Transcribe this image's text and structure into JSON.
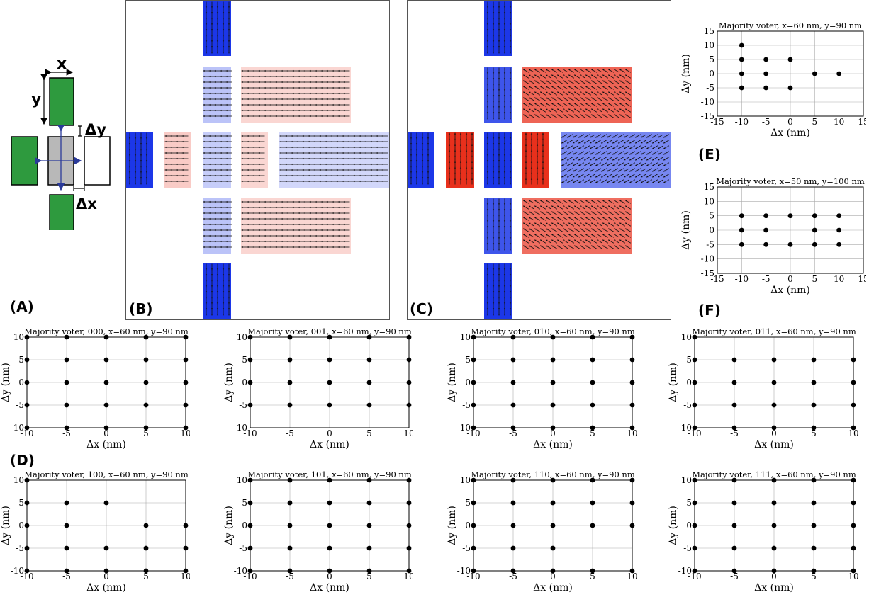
{
  "panel_letters": {
    "a": "(A)",
    "b": "(B)",
    "c": "(C)",
    "d": "(D)",
    "e": "(E)",
    "f": "(F)"
  },
  "schematic": {
    "x_label": "x",
    "y_label": "y",
    "dx_label": "Δx",
    "dy_label": "Δy",
    "colors": {
      "fixed": "#2e9a3e",
      "center": "#b8b8b8",
      "output": "#ffffff"
    }
  },
  "sims": {
    "colors": {
      "red": "#e8301c",
      "blue": "#1c37e8"
    },
    "b": {
      "magnets": [
        {
          "x": 108,
          "y": 0,
          "w": 40,
          "h": 78,
          "dir": "down",
          "c": "b",
          "s": 1.0
        },
        {
          "x": 108,
          "y": 93,
          "w": 40,
          "h": 80,
          "dir": "left",
          "c": "b",
          "s": 0.3
        },
        {
          "x": 162,
          "y": 93,
          "w": 155,
          "h": 80,
          "dir": "left",
          "c": "r",
          "s": 0.2
        },
        {
          "x": 0,
          "y": 185,
          "w": 38,
          "h": 79,
          "dir": "down",
          "c": "b",
          "s": 1.0
        },
        {
          "x": 54,
          "y": 185,
          "w": 38,
          "h": 79,
          "dir": "left",
          "c": "r",
          "s": 0.25
        },
        {
          "x": 108,
          "y": 185,
          "w": 40,
          "h": 79,
          "dir": "left",
          "c": "b",
          "s": 0.25
        },
        {
          "x": 162,
          "y": 185,
          "w": 38,
          "h": 79,
          "dir": "left",
          "c": "r",
          "s": 0.2
        },
        {
          "x": 216,
          "y": 185,
          "w": 155,
          "h": 79,
          "dir": "left",
          "c": "b",
          "s": 0.2
        },
        {
          "x": 108,
          "y": 278,
          "w": 40,
          "h": 80,
          "dir": "left",
          "c": "b",
          "s": 0.3
        },
        {
          "x": 162,
          "y": 278,
          "w": 155,
          "h": 80,
          "dir": "left",
          "c": "r",
          "s": 0.2
        },
        {
          "x": 108,
          "y": 370,
          "w": 40,
          "h": 80,
          "dir": "down",
          "c": "b",
          "s": 1.0
        }
      ]
    },
    "c": {
      "magnets": [
        {
          "x": 108,
          "y": 0,
          "w": 40,
          "h": 78,
          "dir": "down",
          "c": "b",
          "s": 1.0
        },
        {
          "x": 108,
          "y": 93,
          "w": 40,
          "h": 80,
          "dir": "down",
          "c": "b",
          "s": 0.85
        },
        {
          "x": 162,
          "y": 93,
          "w": 155,
          "h": 80,
          "dir": "upleft",
          "c": "r",
          "s": 0.75
        },
        {
          "x": 0,
          "y": 185,
          "w": 38,
          "h": 79,
          "dir": "down",
          "c": "b",
          "s": 1.0
        },
        {
          "x": 54,
          "y": 185,
          "w": 40,
          "h": 79,
          "dir": "up",
          "c": "r",
          "s": 1.0
        },
        {
          "x": 108,
          "y": 185,
          "w": 40,
          "h": 79,
          "dir": "down",
          "c": "b",
          "s": 1.0
        },
        {
          "x": 162,
          "y": 185,
          "w": 38,
          "h": 79,
          "dir": "up",
          "c": "r",
          "s": 1.0
        },
        {
          "x": 216,
          "y": 185,
          "w": 155,
          "h": 79,
          "dir": "downleft",
          "c": "b",
          "s": 0.6
        },
        {
          "x": 108,
          "y": 278,
          "w": 40,
          "h": 80,
          "dir": "down",
          "c": "b",
          "s": 0.85
        },
        {
          "x": 162,
          "y": 278,
          "w": 155,
          "h": 80,
          "dir": "upleft",
          "c": "r",
          "s": 0.7
        },
        {
          "x": 108,
          "y": 370,
          "w": 40,
          "h": 80,
          "dir": "down",
          "c": "b",
          "s": 1.0
        }
      ]
    }
  },
  "chart_data": [
    {
      "type": "scatter",
      "title": "Majority voter, x=60 nm, y=90 nm",
      "xlabel": "Δx (nm)",
      "ylabel": "Δy (nm)",
      "xlim": [
        -15,
        15
      ],
      "ylim": [
        -15,
        15
      ],
      "xticks": [
        -15,
        -10,
        -5,
        0,
        5,
        10,
        15
      ],
      "yticks": [
        -15,
        -10,
        -5,
        0,
        5,
        10,
        15
      ],
      "grid": true,
      "points": [
        [
          -10,
          10
        ],
        [
          -10,
          5
        ],
        [
          -5,
          5
        ],
        [
          0,
          5
        ],
        [
          -10,
          0
        ],
        [
          -5,
          0
        ],
        [
          5,
          0
        ],
        [
          10,
          0
        ],
        [
          -10,
          -5
        ],
        [
          -5,
          -5
        ],
        [
          0,
          -5
        ]
      ]
    },
    {
      "type": "scatter",
      "title": "Majority voter, x=50 nm, y=100 nm",
      "xlabel": "Δx (nm)",
      "ylabel": "Δy (nm)",
      "xlim": [
        -15,
        15
      ],
      "ylim": [
        -15,
        15
      ],
      "xticks": [
        -15,
        -10,
        -5,
        0,
        5,
        10,
        15
      ],
      "yticks": [
        -15,
        -10,
        -5,
        0,
        5,
        10,
        15
      ],
      "grid": true,
      "points": [
        [
          -10,
          5
        ],
        [
          -5,
          5
        ],
        [
          0,
          5
        ],
        [
          5,
          5
        ],
        [
          10,
          5
        ],
        [
          -10,
          0
        ],
        [
          -5,
          0
        ],
        [
          5,
          0
        ],
        [
          10,
          0
        ],
        [
          -10,
          -5
        ],
        [
          -5,
          -5
        ],
        [
          0,
          -5
        ],
        [
          5,
          -5
        ],
        [
          10,
          -5
        ]
      ]
    },
    {
      "type": "scatter",
      "title": "Majority voter, 000, x=60 nm, y=90 nm",
      "xlabel": "Δx (nm)",
      "ylabel": "Δy (nm)",
      "xlim": [
        -10,
        10
      ],
      "ylim": [
        -10,
        10
      ],
      "xticks": [
        -10,
        -5,
        0,
        5,
        10
      ],
      "yticks": [
        -10,
        -5,
        0,
        5,
        10
      ],
      "grid": true,
      "points": [
        [
          -10,
          10
        ],
        [
          -5,
          10
        ],
        [
          0,
          10
        ],
        [
          5,
          10
        ],
        [
          10,
          10
        ],
        [
          -10,
          5
        ],
        [
          -5,
          5
        ],
        [
          0,
          5
        ],
        [
          5,
          5
        ],
        [
          10,
          5
        ],
        [
          -10,
          0
        ],
        [
          -5,
          0
        ],
        [
          0,
          0
        ],
        [
          5,
          0
        ],
        [
          10,
          0
        ],
        [
          -10,
          -5
        ],
        [
          -5,
          -5
        ],
        [
          0,
          -5
        ],
        [
          5,
          -5
        ],
        [
          10,
          -5
        ],
        [
          -10,
          -10
        ],
        [
          -5,
          -10
        ],
        [
          0,
          -10
        ],
        [
          5,
          -10
        ],
        [
          10,
          -10
        ]
      ]
    },
    {
      "type": "scatter",
      "title": "Majority voter, 001, x=60 nm, y=90 nm",
      "xlabel": "Δx (nm)",
      "ylabel": "Δy (nm)",
      "xlim": [
        -10,
        10
      ],
      "ylim": [
        -10,
        10
      ],
      "xticks": [
        -10,
        -5,
        0,
        5,
        10
      ],
      "yticks": [
        -10,
        -5,
        0,
        5,
        10
      ],
      "grid": true,
      "points": [
        [
          -10,
          10
        ],
        [
          -5,
          10
        ],
        [
          0,
          10
        ],
        [
          5,
          10
        ],
        [
          10,
          10
        ],
        [
          -10,
          5
        ],
        [
          -5,
          5
        ],
        [
          0,
          5
        ],
        [
          5,
          5
        ],
        [
          10,
          5
        ],
        [
          -10,
          0
        ],
        [
          -5,
          0
        ],
        [
          0,
          0
        ],
        [
          5,
          0
        ],
        [
          10,
          0
        ],
        [
          -10,
          -5
        ],
        [
          -5,
          -5
        ],
        [
          0,
          -5
        ],
        [
          5,
          -5
        ],
        [
          10,
          -5
        ]
      ]
    },
    {
      "type": "scatter",
      "title": "Majority voter, 010, x=60 nm, y=90 nm",
      "xlabel": "Δx (nm)",
      "ylabel": "Δy (nm)",
      "xlim": [
        -10,
        10
      ],
      "ylim": [
        -10,
        10
      ],
      "xticks": [
        -10,
        -5,
        0,
        5,
        10
      ],
      "yticks": [
        -10,
        -5,
        0,
        5,
        10
      ],
      "grid": true,
      "points": [
        [
          -10,
          10
        ],
        [
          -5,
          10
        ],
        [
          0,
          10
        ],
        [
          5,
          10
        ],
        [
          10,
          10
        ],
        [
          -10,
          5
        ],
        [
          -5,
          5
        ],
        [
          0,
          5
        ],
        [
          5,
          5
        ],
        [
          10,
          5
        ],
        [
          -10,
          0
        ],
        [
          -5,
          0
        ],
        [
          0,
          0
        ],
        [
          5,
          0
        ],
        [
          10,
          0
        ],
        [
          -10,
          -5
        ],
        [
          -5,
          -5
        ],
        [
          0,
          -5
        ],
        [
          5,
          -5
        ],
        [
          10,
          -5
        ],
        [
          -10,
          -10
        ],
        [
          -5,
          -10
        ],
        [
          0,
          -10
        ],
        [
          5,
          -10
        ],
        [
          10,
          -10
        ]
      ]
    },
    {
      "type": "scatter",
      "title": "Majority voter, 011, x=60 nm, y=90 nm",
      "xlabel": "Δx (nm)",
      "ylabel": "Δy (nm)",
      "xlim": [
        -10,
        10
      ],
      "ylim": [
        -10,
        10
      ],
      "xticks": [
        -10,
        -5,
        0,
        5,
        10
      ],
      "yticks": [
        -10,
        -5,
        0,
        5,
        10
      ],
      "grid": true,
      "points": [
        [
          -10,
          10
        ],
        [
          -10,
          5
        ],
        [
          -5,
          5
        ],
        [
          0,
          5
        ],
        [
          5,
          5
        ],
        [
          10,
          5
        ],
        [
          -10,
          0
        ],
        [
          -5,
          0
        ],
        [
          0,
          0
        ],
        [
          5,
          0
        ],
        [
          10,
          0
        ],
        [
          -10,
          -5
        ],
        [
          -5,
          -5
        ],
        [
          0,
          -5
        ],
        [
          5,
          -5
        ],
        [
          10,
          -5
        ],
        [
          -10,
          -10
        ],
        [
          -5,
          -10
        ],
        [
          0,
          -10
        ],
        [
          5,
          -10
        ],
        [
          10,
          -10
        ]
      ]
    },
    {
      "type": "scatter",
      "title": "Majority voter, 100, x=60 nm, y=90 nm",
      "xlabel": "Δx (nm)",
      "ylabel": "Δy (nm)",
      "xlim": [
        -10,
        10
      ],
      "ylim": [
        -10,
        10
      ],
      "xticks": [
        -10,
        -5,
        0,
        5,
        10
      ],
      "yticks": [
        -10,
        -5,
        0,
        5,
        10
      ],
      "grid": true,
      "points": [
        [
          -10,
          10
        ],
        [
          -10,
          5
        ],
        [
          -5,
          5
        ],
        [
          0,
          5
        ],
        [
          -10,
          0
        ],
        [
          -5,
          0
        ],
        [
          5,
          0
        ],
        [
          10,
          0
        ],
        [
          -10,
          -5
        ],
        [
          -5,
          -5
        ],
        [
          0,
          -5
        ],
        [
          5,
          -5
        ],
        [
          10,
          -5
        ],
        [
          -10,
          -10
        ],
        [
          -5,
          -10
        ],
        [
          0,
          -10
        ],
        [
          5,
          -10
        ],
        [
          10,
          -10
        ]
      ]
    },
    {
      "type": "scatter",
      "title": "Majority voter, 101, x=60 nm, y=90 nm",
      "xlabel": "Δx (nm)",
      "ylabel": "Δy (nm)",
      "xlim": [
        -10,
        10
      ],
      "ylim": [
        -10,
        10
      ],
      "xticks": [
        -10,
        -5,
        0,
        5,
        10
      ],
      "yticks": [
        -10,
        -5,
        0,
        5,
        10
      ],
      "grid": true,
      "points": [
        [
          -10,
          10
        ],
        [
          -5,
          10
        ],
        [
          0,
          10
        ],
        [
          5,
          10
        ],
        [
          10,
          10
        ],
        [
          -10,
          5
        ],
        [
          -5,
          5
        ],
        [
          0,
          5
        ],
        [
          5,
          5
        ],
        [
          10,
          5
        ],
        [
          -10,
          0
        ],
        [
          -5,
          0
        ],
        [
          0,
          0
        ],
        [
          5,
          0
        ],
        [
          10,
          0
        ],
        [
          -10,
          -5
        ],
        [
          -5,
          -5
        ],
        [
          0,
          -5
        ],
        [
          5,
          -5
        ],
        [
          10,
          -5
        ],
        [
          -10,
          -10
        ],
        [
          -5,
          -10
        ],
        [
          0,
          -10
        ],
        [
          5,
          -10
        ],
        [
          10,
          -10
        ]
      ]
    },
    {
      "type": "scatter",
      "title": "Majority voter, 110, x=60 nm, y=90 nm",
      "xlabel": "Δx (nm)",
      "ylabel": "Δy (nm)",
      "xlim": [
        -10,
        10
      ],
      "ylim": [
        -10,
        10
      ],
      "xticks": [
        -10,
        -5,
        0,
        5,
        10
      ],
      "yticks": [
        -10,
        -5,
        0,
        5,
        10
      ],
      "grid": true,
      "points": [
        [
          -10,
          10
        ],
        [
          -5,
          10
        ],
        [
          0,
          10
        ],
        [
          5,
          10
        ],
        [
          10,
          10
        ],
        [
          -10,
          5
        ],
        [
          -5,
          5
        ],
        [
          0,
          5
        ],
        [
          5,
          5
        ],
        [
          10,
          5
        ],
        [
          -10,
          0
        ],
        [
          -5,
          0
        ],
        [
          0,
          0
        ],
        [
          5,
          0
        ],
        [
          10,
          0
        ],
        [
          -10,
          -5
        ],
        [
          -5,
          -5
        ],
        [
          0,
          -5
        ],
        [
          -10,
          -10
        ],
        [
          -5,
          -10
        ],
        [
          0,
          -10
        ],
        [
          5,
          -10
        ],
        [
          10,
          -10
        ]
      ]
    },
    {
      "type": "scatter",
      "title": "Majority voter, 111, x=60 nm, y=90 nm",
      "xlabel": "Δx (nm)",
      "ylabel": "Δy (nm)",
      "xlim": [
        -10,
        10
      ],
      "ylim": [
        -10,
        10
      ],
      "xticks": [
        -10,
        -5,
        0,
        5,
        10
      ],
      "yticks": [
        -10,
        -5,
        0,
        5,
        10
      ],
      "grid": true,
      "points": [
        [
          -10,
          10
        ],
        [
          -5,
          10
        ],
        [
          0,
          10
        ],
        [
          5,
          10
        ],
        [
          10,
          10
        ],
        [
          -10,
          5
        ],
        [
          -5,
          5
        ],
        [
          0,
          5
        ],
        [
          5,
          5
        ],
        [
          10,
          5
        ],
        [
          -10,
          0
        ],
        [
          -5,
          0
        ],
        [
          0,
          0
        ],
        [
          5,
          0
        ],
        [
          10,
          0
        ],
        [
          -10,
          -5
        ],
        [
          -5,
          -5
        ],
        [
          0,
          -5
        ],
        [
          5,
          -5
        ],
        [
          10,
          -5
        ],
        [
          -10,
          -10
        ],
        [
          -5,
          -10
        ],
        [
          0,
          -10
        ],
        [
          5,
          -10
        ],
        [
          10,
          -10
        ]
      ]
    }
  ]
}
